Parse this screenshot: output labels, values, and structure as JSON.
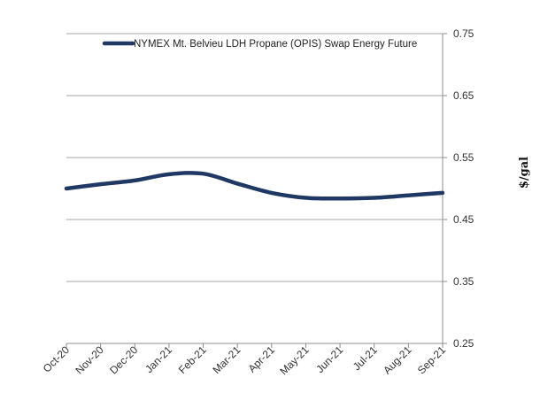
{
  "chart_data": {
    "type": "line",
    "title": "",
    "xlabel": "",
    "ylabel": "$/gal",
    "ylim": [
      0.25,
      0.75
    ],
    "yticks": [
      "0.25",
      "0.35",
      "0.45",
      "0.55",
      "0.65",
      "0.75"
    ],
    "y_axis_side": "right",
    "grid": "horizontal",
    "legend_position": "top",
    "categories": [
      "Oct-20",
      "Nov-20",
      "Dec-20",
      "Jan-21",
      "Feb-21",
      "Mar-21",
      "Apr-21",
      "May-21",
      "Jun-21",
      "Jul-21",
      "Aug-21",
      "Sep-21"
    ],
    "series": [
      {
        "name": "NYMEX Mt. Belvieu LDH Propane (OPIS) Swap Energy Future",
        "values": [
          0.5,
          0.507,
          0.513,
          0.523,
          0.524,
          0.508,
          0.493,
          0.485,
          0.484,
          0.485,
          0.489,
          0.493
        ],
        "color": "#1f3864"
      }
    ]
  }
}
